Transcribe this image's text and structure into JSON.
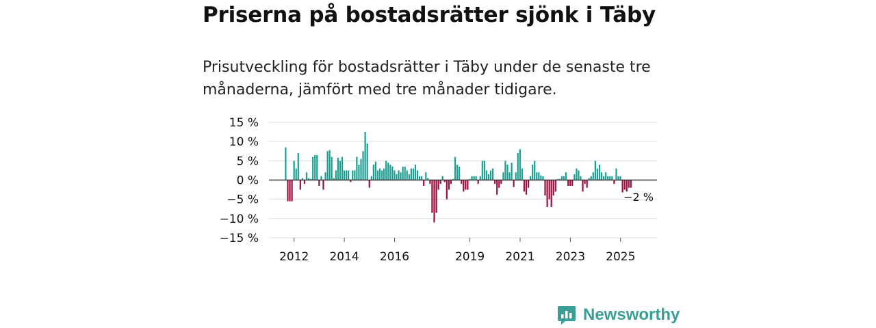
{
  "header": {
    "title": "Priserna på bostadsrätter sjönk i Täby",
    "subtitle": "Prisutveckling för bostadsrätter i Täby under de senaste tre månaderna, jämfört med tre månader tidigare."
  },
  "brand": {
    "name": "Newsworthy",
    "color": "#3a9e97",
    "icon": "newsworthy-logo-icon"
  },
  "colors": {
    "positive": "#1a9e92",
    "negative": "#9b0d3c",
    "grid": "#dddddd",
    "zero_line": "#333333"
  },
  "chart_data": {
    "type": "bar",
    "title": "Priserna på bostadsrätter sjönk i Täby",
    "ylabel": "",
    "xlabel": "",
    "ylim": [
      -15,
      15
    ],
    "y_ticks": [
      15,
      10,
      5,
      0,
      -5,
      -10,
      -15
    ],
    "y_tick_labels": [
      "15 %",
      "10 %",
      "5 %",
      "0 %",
      "−5 %",
      "−10 %",
      "−15 %"
    ],
    "x_range": [
      2011.0,
      2026.45
    ],
    "x_ticks": [
      2012,
      2014,
      2016,
      2019,
      2021,
      2023,
      2025
    ],
    "x_tick_labels": [
      "2012",
      "2014",
      "2016",
      "2019",
      "2021",
      "2023",
      "2025"
    ],
    "series_start": 2011.666,
    "step": 0.0833,
    "annotation": {
      "label": "−2 %",
      "value": -2
    },
    "values": [
      8.5,
      -5.5,
      -5.5,
      -5.5,
      5,
      3,
      7,
      -2.5,
      0.5,
      -1,
      2,
      0.5,
      0.3,
      6,
      6.5,
      6.5,
      -1.5,
      1,
      -2.5,
      2,
      7.5,
      7.8,
      6,
      0.5,
      2.5,
      5.8,
      5,
      6,
      2.5,
      2.5,
      2.5,
      -0.5,
      2.5,
      2.5,
      6,
      4,
      5.5,
      7.5,
      12.5,
      9.5,
      -2,
      1,
      4,
      4.8,
      2.5,
      3,
      2.5,
      3,
      5,
      4.5,
      4,
      3.5,
      2.5,
      1.5,
      2.5,
      2,
      3.5,
      3.5,
      2.5,
      1.5,
      3,
      3,
      4,
      2.5,
      1,
      1,
      -1.5,
      2,
      0.5,
      -1,
      -8.5,
      -11,
      -8.5,
      -2.5,
      -1,
      1,
      -0.5,
      -5,
      -2.5,
      -1,
      0.3,
      6,
      4,
      3.5,
      -1,
      -3,
      -2.5,
      -2.5,
      0.3,
      1,
      1,
      1,
      -1,
      1,
      5,
      5,
      2.5,
      1.5,
      2.5,
      3,
      -1,
      -3.8,
      -2,
      -1,
      2,
      5,
      4,
      2,
      4.5,
      -1.8,
      2,
      7,
      8,
      3,
      -3,
      -3.8,
      -2,
      1,
      4,
      5,
      2,
      2,
      1.2,
      1,
      -4,
      -7,
      -5,
      -7,
      -4,
      -3,
      0.3,
      0.3,
      1,
      1,
      2,
      -1.5,
      -1.5,
      -1.5,
      1.5,
      3,
      2.5,
      1,
      -3,
      -1,
      -2,
      0.5,
      1,
      2,
      5,
      3,
      4,
      2,
      1,
      2,
      1,
      1,
      1,
      -1,
      3,
      1,
      1,
      -3.2,
      -2.5,
      -3,
      -2,
      -2
    ]
  }
}
